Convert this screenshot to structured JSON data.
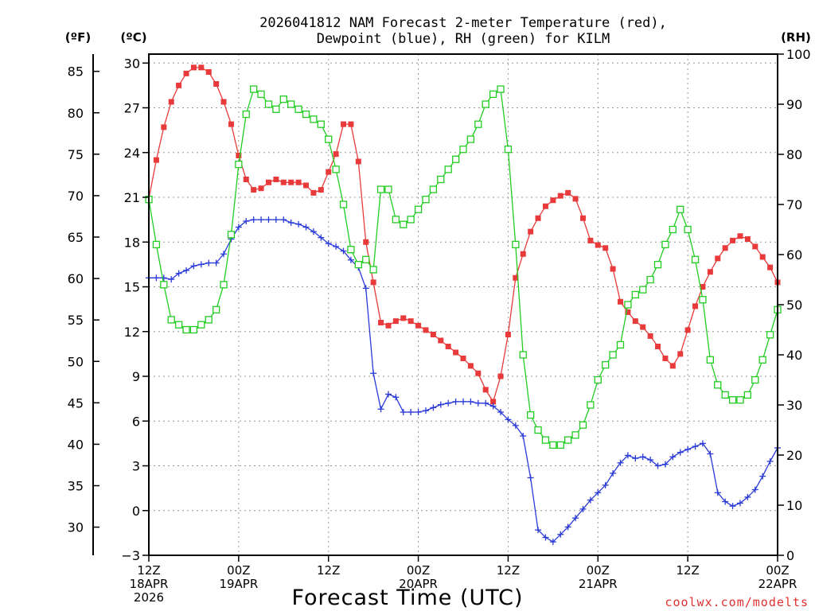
{
  "chart_data": {
    "type": "line",
    "title_lines": [
      "2026041812 NAM Forecast 2-meter Temperature (red),",
      "Dewpoint (blue), RH (green) for KILM"
    ],
    "xlabel": "Forecast Time (UTC)",
    "credit": "coolwx.com/modelts",
    "units": {
      "fahrenheit": "(ºF)",
      "celsius": "(ºC)",
      "rh": "(RH)"
    },
    "x_hours_range": [
      0,
      84
    ],
    "x_ticks": [
      {
        "hour": 0,
        "lines": [
          "12Z",
          "18APR",
          "2026"
        ]
      },
      {
        "hour": 12,
        "lines": [
          "00Z",
          "19APR"
        ]
      },
      {
        "hour": 24,
        "lines": [
          "12Z"
        ]
      },
      {
        "hour": 36,
        "lines": [
          "00Z",
          "20APR"
        ]
      },
      {
        "hour": 48,
        "lines": [
          "12Z"
        ]
      },
      {
        "hour": 60,
        "lines": [
          "00Z",
          "21APR"
        ]
      },
      {
        "hour": 72,
        "lines": [
          "12Z"
        ]
      },
      {
        "hour": 84,
        "lines": [
          "00Z",
          "22APR"
        ]
      }
    ],
    "celsius_axis": {
      "range": [
        -3,
        30.6
      ],
      "ticks": [
        "30",
        "27",
        "24",
        "21",
        "18",
        "15",
        "12",
        "9",
        "6",
        "3",
        "0",
        "−3"
      ],
      "tick_values": [
        30,
        27,
        24,
        21,
        18,
        15,
        12,
        9,
        6,
        3,
        0,
        -3
      ]
    },
    "fahrenheit_axis": {
      "ticks": [
        "85",
        "80",
        "75",
        "70",
        "65",
        "60",
        "55",
        "50",
        "45",
        "40",
        "35",
        "30"
      ],
      "tick_values": [
        85,
        80,
        75,
        70,
        65,
        60,
        55,
        50,
        45,
        40,
        35,
        30
      ]
    },
    "rh_axis": {
      "range": [
        0,
        100
      ],
      "ticks": [
        "100",
        "90",
        "80",
        "70",
        "60",
        "50",
        "40",
        "30",
        "20",
        "10",
        "0"
      ],
      "tick_values": [
        100,
        90,
        80,
        70,
        60,
        50,
        40,
        30,
        20,
        10,
        0
      ]
    },
    "grid": true,
    "colors": {
      "temperature": "#e83a3a",
      "dewpoint": "#2a3ad8",
      "rh": "#22cc22"
    },
    "series": [
      {
        "name": "Temperature",
        "axis": "celsius",
        "marker": "filled-square",
        "x": [
          0,
          1,
          2,
          3,
          4,
          5,
          6,
          7,
          8,
          9,
          10,
          11,
          12,
          13,
          14,
          15,
          16,
          17,
          18,
          19,
          20,
          21,
          22,
          23,
          24,
          25,
          26,
          27,
          28,
          29,
          30,
          31,
          32,
          33,
          34,
          35,
          36,
          37,
          38,
          39,
          40,
          41,
          42,
          43,
          44,
          45,
          46,
          47,
          48,
          49,
          50,
          51,
          52,
          53,
          54,
          55,
          56,
          57,
          58,
          59,
          60,
          61,
          62,
          63,
          64,
          65,
          66,
          67,
          68,
          69,
          70,
          71,
          72,
          73,
          74,
          75,
          76,
          77,
          78,
          79,
          80,
          81,
          82,
          83,
          84
        ],
        "values": [
          20.9,
          23.5,
          25.7,
          27.4,
          28.5,
          29.3,
          29.7,
          29.7,
          29.4,
          28.6,
          27.4,
          25.9,
          23.8,
          22.2,
          21.5,
          21.6,
          22.0,
          22.2,
          22.0,
          22.0,
          22.0,
          21.8,
          21.3,
          21.5,
          22.7,
          23.9,
          25.9,
          25.9,
          23.4,
          18.0,
          15.3,
          12.6,
          12.4,
          12.7,
          12.9,
          12.7,
          12.4,
          12.1,
          11.8,
          11.4,
          11.0,
          10.6,
          10.2,
          9.7,
          9.2,
          8.1,
          7.3,
          9.0,
          11.8,
          15.6,
          17.2,
          18.7,
          19.6,
          20.4,
          20.8,
          21.1,
          21.3,
          20.9,
          19.6,
          18.1,
          17.8,
          17.6,
          16.2,
          14.0,
          13.3,
          12.7,
          12.3,
          11.7,
          11.0,
          10.2,
          9.7,
          10.5,
          12.1,
          13.7,
          15.0,
          16.0,
          16.9,
          17.6,
          18.1,
          18.4,
          18.2,
          17.7,
          17.0,
          16.3,
          15.3
        ]
      },
      {
        "name": "Dewpoint",
        "axis": "celsius",
        "marker": "plus",
        "x": [
          0,
          1,
          2,
          3,
          4,
          5,
          6,
          7,
          8,
          9,
          10,
          11,
          12,
          13,
          14,
          15,
          16,
          17,
          18,
          19,
          20,
          21,
          22,
          23,
          24,
          25,
          26,
          27,
          28,
          29,
          30,
          31,
          32,
          33,
          34,
          35,
          36,
          37,
          38,
          39,
          40,
          41,
          42,
          43,
          44,
          45,
          46,
          47,
          48,
          49,
          50,
          51,
          52,
          53,
          54,
          55,
          56,
          57,
          58,
          59,
          60,
          61,
          62,
          63,
          64,
          65,
          66,
          67,
          68,
          69,
          70,
          71,
          72,
          73,
          74,
          75,
          76,
          77,
          78,
          79,
          80,
          81,
          82,
          83,
          84
        ],
        "values": [
          15.6,
          15.6,
          15.6,
          15.5,
          15.9,
          16.1,
          16.4,
          16.5,
          16.6,
          16.6,
          17.2,
          18.2,
          19.0,
          19.4,
          19.5,
          19.5,
          19.5,
          19.5,
          19.5,
          19.3,
          19.2,
          19.0,
          18.7,
          18.3,
          17.9,
          17.7,
          17.4,
          16.8,
          16.3,
          14.9,
          9.2,
          6.8,
          7.8,
          7.6,
          6.6,
          6.6,
          6.6,
          6.7,
          6.9,
          7.1,
          7.2,
          7.3,
          7.3,
          7.3,
          7.2,
          7.2,
          7.0,
          6.6,
          6.1,
          5.7,
          5.0,
          2.2,
          -1.3,
          -1.8,
          -2.1,
          -1.6,
          -1.1,
          -0.5,
          0.1,
          0.7,
          1.2,
          1.7,
          2.5,
          3.2,
          3.7,
          3.5,
          3.6,
          3.4,
          3.0,
          3.1,
          3.6,
          3.9,
          4.1,
          4.3,
          4.5,
          3.8,
          1.2,
          0.6,
          0.3,
          0.5,
          0.9,
          1.4,
          2.3,
          3.3,
          4.2
        ]
      },
      {
        "name": "RH",
        "axis": "rh",
        "marker": "open-square",
        "x": [
          0,
          1,
          2,
          3,
          4,
          5,
          6,
          7,
          8,
          9,
          10,
          11,
          12,
          13,
          14,
          15,
          16,
          17,
          18,
          19,
          20,
          21,
          22,
          23,
          24,
          25,
          26,
          27,
          28,
          29,
          30,
          31,
          32,
          33,
          34,
          35,
          36,
          37,
          38,
          39,
          40,
          41,
          42,
          43,
          44,
          45,
          46,
          47,
          48,
          49,
          50,
          51,
          52,
          53,
          54,
          55,
          56,
          57,
          58,
          59,
          60,
          61,
          62,
          63,
          64,
          65,
          66,
          67,
          68,
          69,
          70,
          71,
          72,
          73,
          74,
          75,
          76,
          77,
          78,
          79,
          80,
          81,
          82,
          83,
          84
        ],
        "values": [
          71,
          62,
          54,
          47,
          46,
          45,
          45,
          46,
          47,
          49,
          54,
          64,
          78,
          88,
          93,
          92,
          90,
          89,
          91,
          90,
          89,
          88,
          87,
          86,
          83,
          77,
          70,
          61,
          58,
          59,
          57,
          73,
          73,
          67,
          66,
          67,
          69,
          71,
          73,
          75,
          77,
          79,
          81,
          83,
          86,
          90,
          92,
          93,
          81,
          62,
          40,
          28,
          25,
          23,
          22,
          22,
          23,
          24,
          26,
          30,
          35,
          38,
          40,
          42,
          50,
          52,
          53,
          55,
          58,
          62,
          65,
          69,
          65,
          59,
          51,
          39,
          34,
          32,
          31,
          31,
          32,
          35,
          39,
          44,
          49
        ]
      }
    ]
  }
}
